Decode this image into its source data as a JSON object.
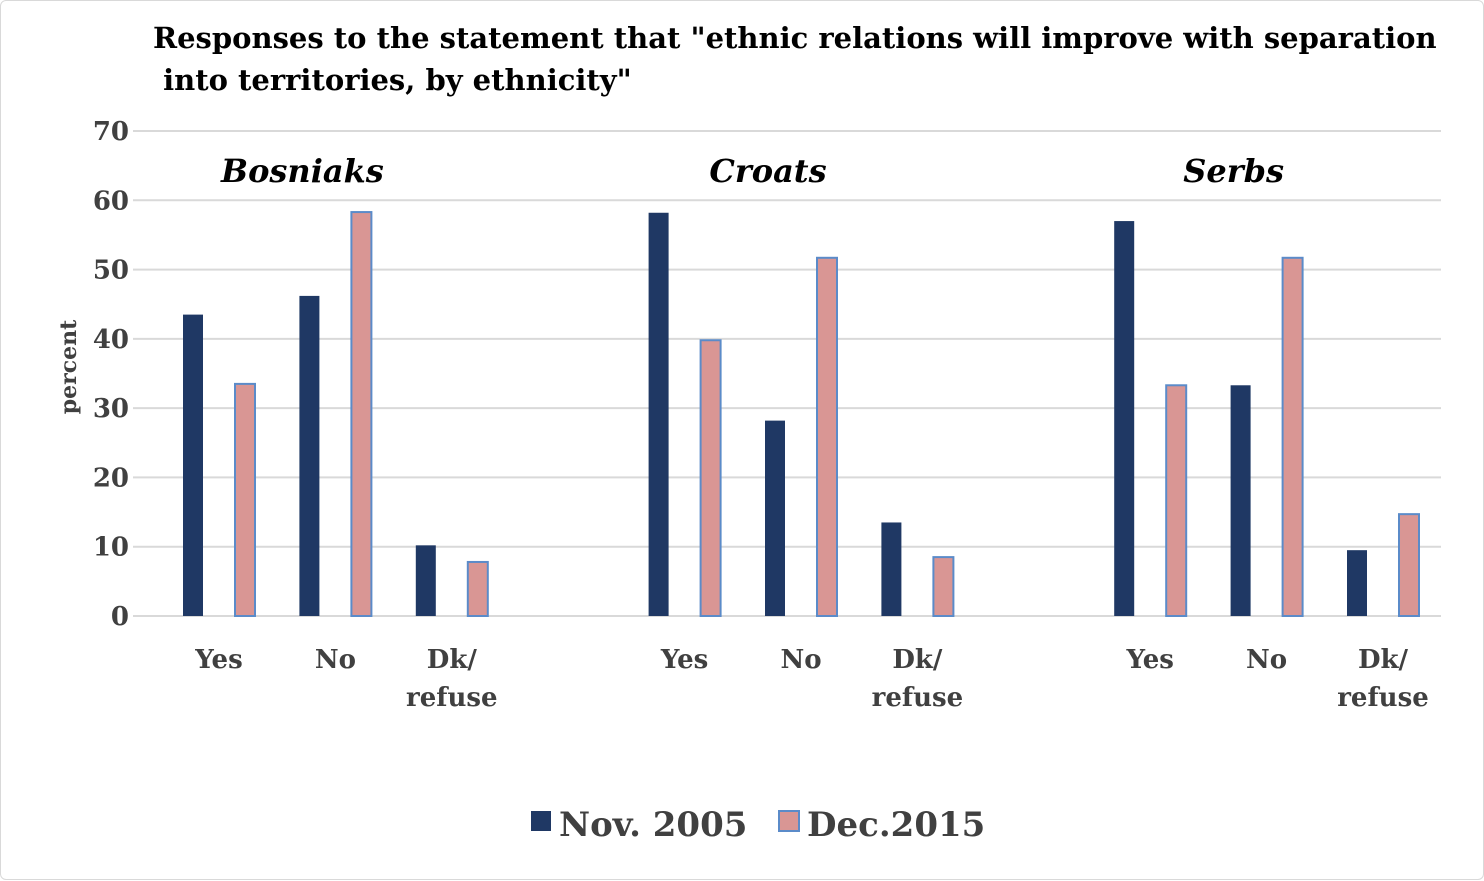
{
  "chart_data": {
    "type": "bar",
    "title_lines": [
      "Responses to the statement that \"ethnic relations will improve with separation",
      " into territories, by ethnicity\""
    ],
    "ylabel": "percent",
    "ylim": [
      0,
      70
    ],
    "yticks": [
      0,
      10,
      20,
      30,
      40,
      50,
      60,
      70
    ],
    "grid": true,
    "legend_position": "bottom",
    "groups": [
      {
        "name": "Bosniaks",
        "categories": [
          [
            "Yes"
          ],
          [
            "No"
          ],
          [
            "Dk/",
            "refuse"
          ]
        ],
        "series": [
          {
            "name": "Nov. 2005",
            "values": [
              43.5,
              46.2,
              10.2
            ]
          },
          {
            "name": "Dec.2015",
            "values": [
              33.5,
              58.3,
              7.8
            ]
          }
        ]
      },
      {
        "name": "Croats",
        "categories": [
          [
            "Yes"
          ],
          [
            "No"
          ],
          [
            "Dk/",
            "refuse"
          ]
        ],
        "series": [
          {
            "name": "Nov. 2005",
            "values": [
              58.2,
              28.2,
              13.5
            ]
          },
          {
            "name": "Dec.2015",
            "values": [
              39.8,
              51.7,
              8.5
            ]
          }
        ]
      },
      {
        "name": "Serbs",
        "categories": [
          [
            "Yes"
          ],
          [
            "No"
          ],
          [
            "Dk/",
            "refuse"
          ]
        ],
        "series": [
          {
            "name": "Nov. 2005",
            "values": [
              57.0,
              33.3,
              9.5
            ]
          },
          {
            "name": "Dec.2015",
            "values": [
              33.3,
              51.7,
              14.7
            ]
          }
        ]
      }
    ],
    "legend": [
      {
        "name": "Nov. 2005",
        "color": "#1f3864"
      },
      {
        "name": "Dec.2015",
        "color": "#d99694"
      }
    ],
    "colors": {
      "series_1": "#1f3864",
      "series_2": "#d99694",
      "series_2_border": "#5b8bc9",
      "grid": "#d9d9d9"
    }
  }
}
